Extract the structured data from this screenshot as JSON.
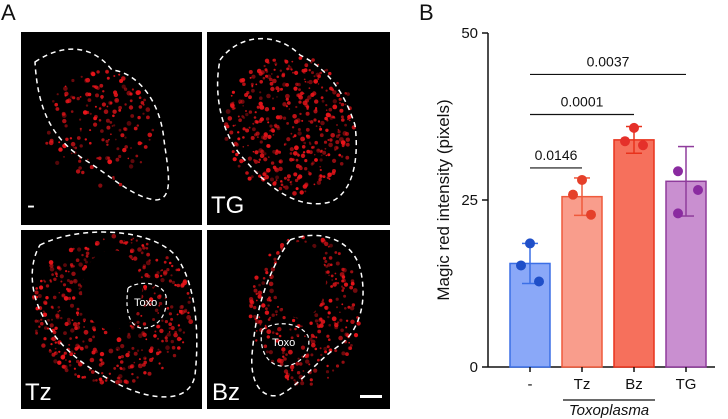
{
  "panels": {
    "a_label": "A",
    "b_label": "B"
  },
  "micrographs": [
    {
      "label": "-",
      "toxo_label": ""
    },
    {
      "label": "TG",
      "toxo_label": ""
    },
    {
      "label": "Tz",
      "toxo_label": "Toxo"
    },
    {
      "label": "Bz",
      "toxo_label": "Toxo"
    }
  ],
  "colors": {
    "micrograph_background": "#000000",
    "stain_red": "#e8141a",
    "outline": "#ffffff"
  },
  "chart_data": {
    "type": "bar",
    "categories": [
      "-",
      "Tz",
      "Bz",
      "TG"
    ],
    "values": [
      15.5,
      25.5,
      34.0,
      27.8
    ],
    "errors": [
      3.0,
      2.8,
      2.0,
      5.2
    ],
    "points": [
      [
        18.5,
        15.2,
        12.8
      ],
      [
        28.0,
        25.8,
        22.8
      ],
      [
        35.8,
        33.8,
        33.2
      ],
      [
        29.3,
        23.0,
        26.5
      ]
    ],
    "bar_fill": [
      "#8aa8f8",
      "#f99d8c",
      "#f6705c",
      "#c98fd0"
    ],
    "bar_stroke": [
      "#3b6fe6",
      "#ef5a3c",
      "#e8321c",
      "#8f3c9c"
    ],
    "dot_color": [
      "#1f4fc8",
      "#e5402a",
      "#e5302a",
      "#8a2ba0"
    ],
    "ylabel": "Magic red intensity (pixels)",
    "xlabel": "",
    "ylim": [
      0,
      50
    ],
    "yticks": [
      0,
      25,
      50
    ],
    "group_label": "Toxoplasma",
    "comparisons": [
      {
        "from": 0,
        "to": 1,
        "p": "0.0146",
        "y": 29.8
      },
      {
        "from": 0,
        "to": 2,
        "p": "0.0001",
        "y": 37.8
      },
      {
        "from": 0,
        "to": 3,
        "p": "0.0037",
        "y": 43.8
      }
    ]
  }
}
